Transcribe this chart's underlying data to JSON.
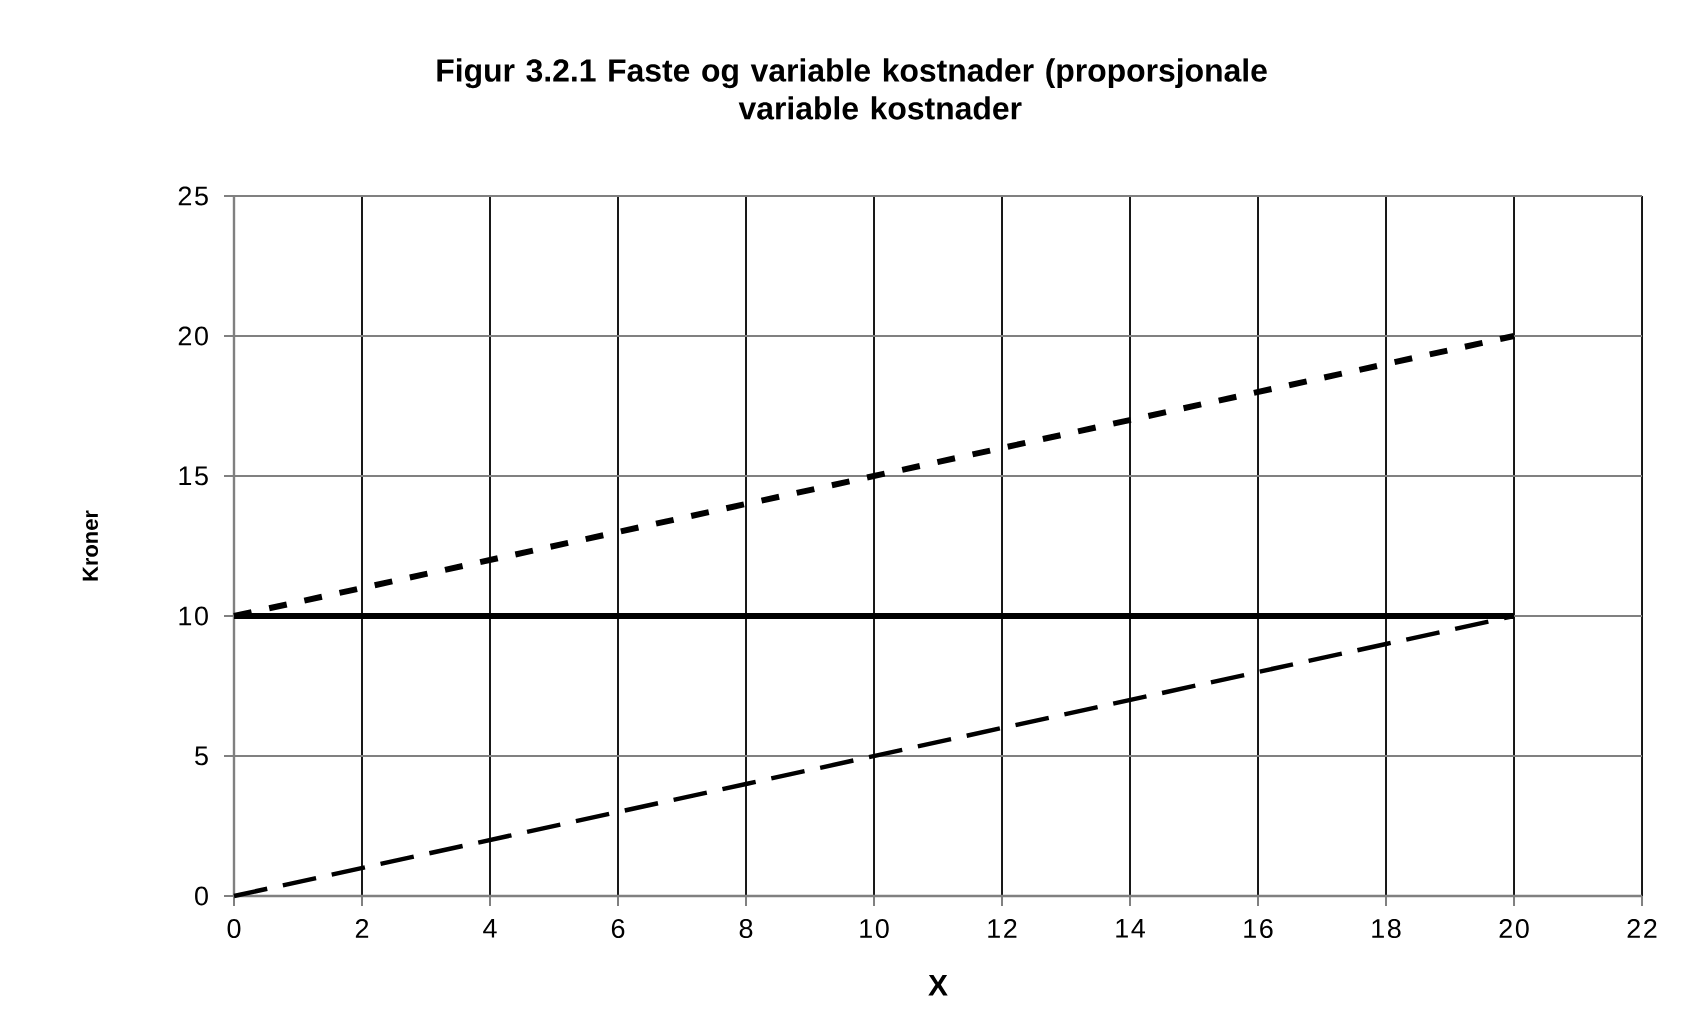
{
  "chart_data": {
    "type": "line",
    "title": "Figur 3.2.1 Faste og variable kostnader (proporsjonale variable kostnader",
    "xlabel": "X",
    "ylabel": "Kroner",
    "series": [
      {
        "color": "#000000",
        "line_style": "dashed",
        "x": [
          0,
          2,
          4,
          6,
          8,
          10,
          12,
          14,
          16,
          18,
          20
        ],
        "values": [
          10,
          11,
          12,
          13,
          14,
          15,
          16,
          17,
          18,
          19,
          20
        ]
      },
      {
        "color": "#000000",
        "line_style": "solid",
        "x": [
          0,
          20
        ],
        "values": [
          10,
          10
        ]
      },
      {
        "color": "#000000",
        "line_style": "dashed",
        "x": [
          0,
          2,
          4,
          6,
          8,
          10,
          12,
          14,
          16,
          18,
          20
        ],
        "values": [
          0,
          1,
          2,
          3,
          4,
          5,
          6,
          7,
          8,
          9,
          10
        ]
      }
    ],
    "xlim": [
      0,
      22
    ],
    "ylim": [
      0,
      25
    ],
    "xticks": [
      0,
      2,
      4,
      6,
      8,
      10,
      12,
      14,
      16,
      18,
      20,
      22
    ],
    "yticks": [
      0,
      5,
      10,
      15,
      20,
      25
    ],
    "grid": true,
    "legend": false,
    "marker": "none"
  }
}
